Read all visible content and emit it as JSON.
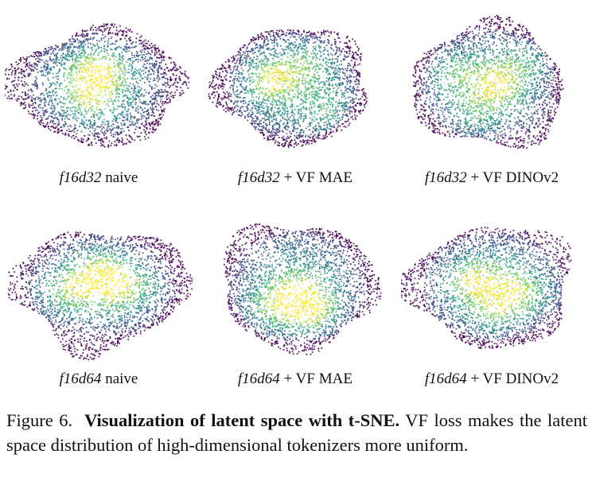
{
  "figure": {
    "label": "Figure 6.",
    "bold_title": "Visualization of latent space with t-SNE.",
    "body": "VF loss makes the latent space distribution of high-dimensional tokenizers more uniform."
  },
  "panels": [
    {
      "id": "f16d32-naive",
      "name_italic": "f16d32",
      "suffix": " naive"
    },
    {
      "id": "f16d32-vf-mae",
      "name_italic": "f16d32",
      "suffix": " + VF MAE"
    },
    {
      "id": "f16d32-vf-dinov2",
      "name_italic": "f16d32",
      "suffix": " + VF DINOv2"
    },
    {
      "id": "f16d64-naive",
      "name_italic": "f16d64",
      "suffix": " naive"
    },
    {
      "id": "f16d64-vf-mae",
      "name_italic": "f16d64",
      "suffix": " + VF MAE"
    },
    {
      "id": "f16d64-vf-dinov2",
      "name_italic": "f16d64",
      "suffix": " + VF DINOv2"
    }
  ],
  "colormap": [
    "#440154",
    "#3b528b",
    "#21918c",
    "#5ec962",
    "#fde725"
  ]
}
